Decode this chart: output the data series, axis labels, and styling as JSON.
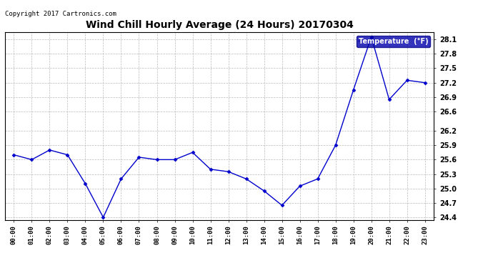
{
  "title": "Wind Chill Hourly Average (24 Hours) 20170304",
  "copyright_text": "Copyright 2017 Cartronics.com",
  "legend_label": "Temperature  (°F)",
  "hours": [
    "00:00",
    "01:00",
    "02:00",
    "03:00",
    "04:00",
    "05:00",
    "06:00",
    "07:00",
    "08:00",
    "09:00",
    "10:00",
    "11:00",
    "12:00",
    "13:00",
    "14:00",
    "15:00",
    "16:00",
    "17:00",
    "18:00",
    "19:00",
    "20:00",
    "21:00",
    "22:00",
    "23:00"
  ],
  "values": [
    25.7,
    25.6,
    25.8,
    25.7,
    25.1,
    24.4,
    25.2,
    25.65,
    25.6,
    25.6,
    25.75,
    25.4,
    25.35,
    25.2,
    24.95,
    24.65,
    25.05,
    25.2,
    25.9,
    27.05,
    28.15,
    26.85,
    27.25,
    27.2
  ],
  "ylim_min": 24.35,
  "ylim_max": 28.25,
  "yticks": [
    24.4,
    24.7,
    25.0,
    25.3,
    25.6,
    25.9,
    26.2,
    26.6,
    26.9,
    27.2,
    27.5,
    27.8,
    28.1
  ],
  "line_color": "#0000cc",
  "marker_color": "#0000cc",
  "bg_color": "#ffffff",
  "grid_color": "#bbbbbb",
  "title_fontsize": 10,
  "copyright_fontsize": 6.5,
  "legend_bg": "#0000aa",
  "legend_text_color": "#ffffff"
}
